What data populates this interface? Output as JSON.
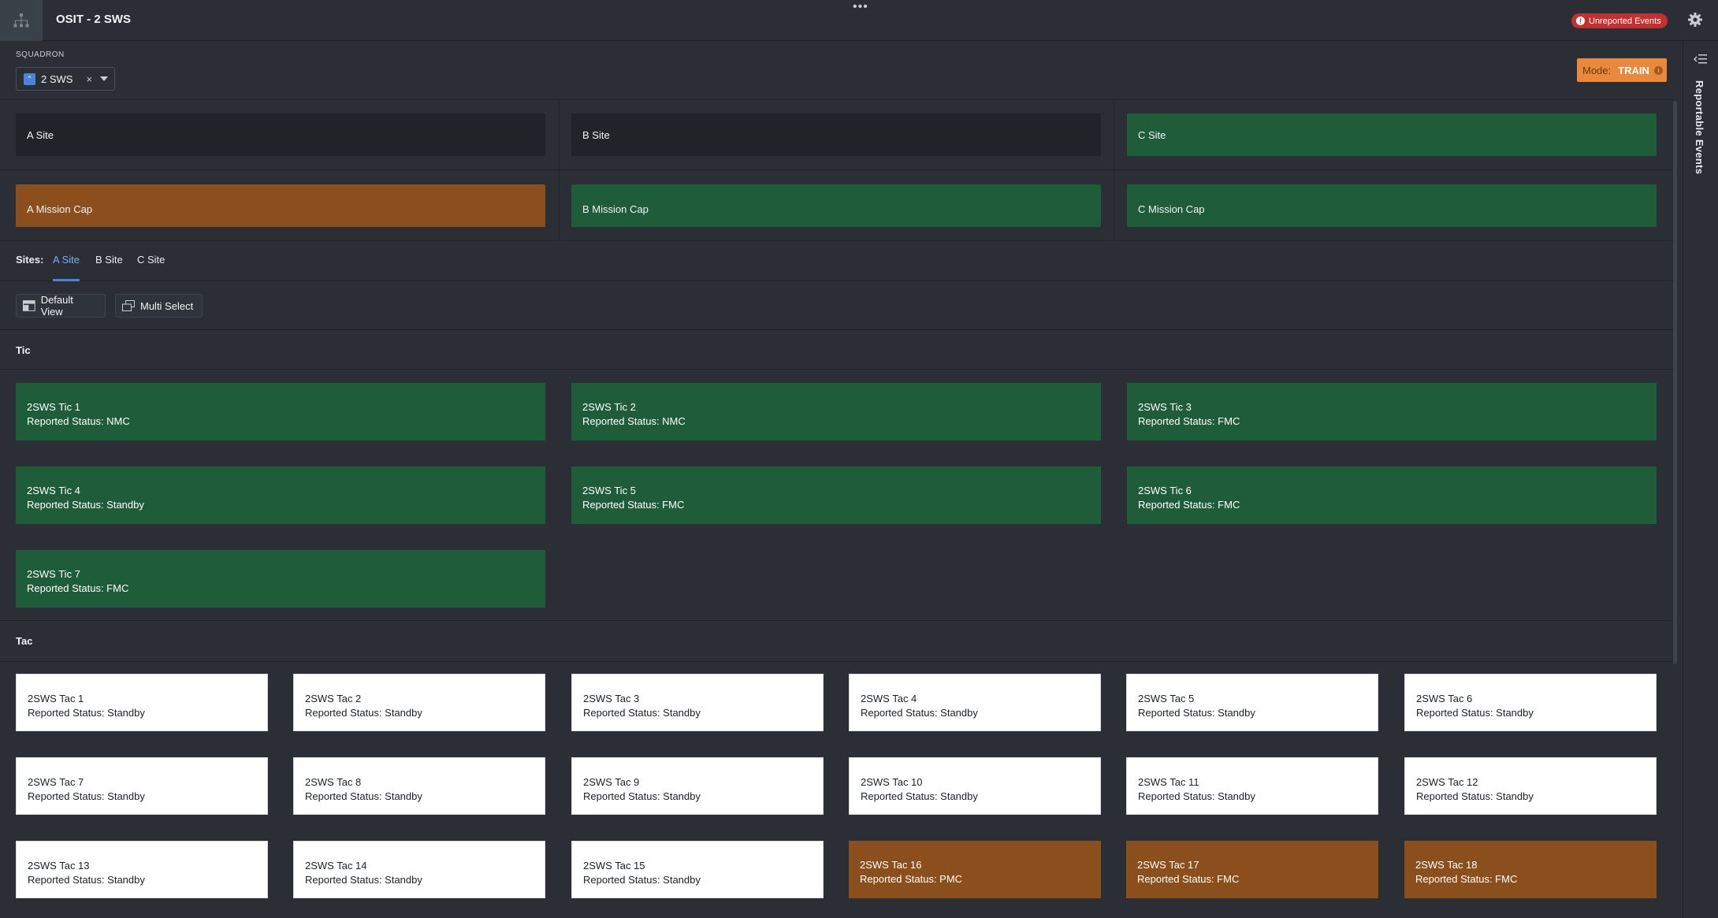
{
  "header": {
    "title": "OSIT - 2 SWS",
    "drag_handle": "•••",
    "unreported_events": "Unreported Events",
    "colors": {
      "alert": "#c23030",
      "accent": "#4c82d8"
    }
  },
  "squadron": {
    "label": "SQUADRON",
    "selected": "2 SWS",
    "clear_glyph": "×"
  },
  "mode": {
    "label": "Mode:",
    "value": "TRAIN",
    "color": "#e8893e"
  },
  "right_panel": {
    "label": "Reportable Events"
  },
  "site_status": [
    {
      "label": "A Site",
      "status": "dark"
    },
    {
      "label": "B Site",
      "status": "dark"
    },
    {
      "label": "C Site",
      "status": "green"
    }
  ],
  "mission_caps": [
    {
      "label": "A Mission Cap",
      "status": "orange"
    },
    {
      "label": "B Mission Cap",
      "status": "green"
    },
    {
      "label": "C Mission Cap",
      "status": "green"
    }
  ],
  "tabs": {
    "label": "Sites:",
    "items": [
      "A Site",
      "B Site",
      "C Site"
    ],
    "active": "A Site"
  },
  "toolbar": {
    "default_view": "Default View",
    "multi_select": "Multi Select"
  },
  "tic": {
    "title": "Tic",
    "items": [
      {
        "name": "2SWS Tic 1",
        "status": "Reported Status: NMC",
        "color": "green"
      },
      {
        "name": "2SWS Tic 2",
        "status": "Reported Status: NMC",
        "color": "green"
      },
      {
        "name": "2SWS Tic 3",
        "status": "Reported Status: FMC",
        "color": "green"
      },
      {
        "name": "2SWS Tic 4",
        "status": "Reported Status: Standby",
        "color": "green"
      },
      {
        "name": "2SWS Tic 5",
        "status": "Reported Status: FMC",
        "color": "green"
      },
      {
        "name": "2SWS Tic 6",
        "status": "Reported Status: FMC",
        "color": "green"
      },
      {
        "name": "2SWS Tic 7",
        "status": "Reported Status: FMC",
        "color": "green"
      }
    ]
  },
  "tac": {
    "title": "Tac",
    "items": [
      {
        "name": "2SWS Tac 1",
        "status": "Reported Status: Standby",
        "color": "white"
      },
      {
        "name": "2SWS Tac 2",
        "status": "Reported Status: Standby",
        "color": "white"
      },
      {
        "name": "2SWS Tac 3",
        "status": "Reported Status: Standby",
        "color": "white"
      },
      {
        "name": "2SWS Tac 4",
        "status": "Reported Status: Standby",
        "color": "white"
      },
      {
        "name": "2SWS Tac 5",
        "status": "Reported Status: Standby",
        "color": "white"
      },
      {
        "name": "2SWS Tac 6",
        "status": "Reported Status: Standby",
        "color": "white"
      },
      {
        "name": "2SWS Tac 7",
        "status": "Reported Status: Standby",
        "color": "white"
      },
      {
        "name": "2SWS Tac 8",
        "status": "Reported Status: Standby",
        "color": "white"
      },
      {
        "name": "2SWS Tac 9",
        "status": "Reported Status: Standby",
        "color": "white"
      },
      {
        "name": "2SWS Tac 10",
        "status": "Reported Status: Standby",
        "color": "white"
      },
      {
        "name": "2SWS Tac 11",
        "status": "Reported Status: Standby",
        "color": "white"
      },
      {
        "name": "2SWS Tac 12",
        "status": "Reported Status: Standby",
        "color": "white"
      },
      {
        "name": "2SWS Tac 13",
        "status": "Reported Status: Standby",
        "color": "white"
      },
      {
        "name": "2SWS Tac 14",
        "status": "Reported Status: Standby",
        "color": "white"
      },
      {
        "name": "2SWS Tac 15",
        "status": "Reported Status: Standby",
        "color": "white"
      },
      {
        "name": "2SWS Tac 16",
        "status": "Reported Status: PMC",
        "color": "orange"
      },
      {
        "name": "2SWS Tac 17",
        "status": "Reported Status: FMC",
        "color": "orange"
      },
      {
        "name": "2SWS Tac 18",
        "status": "Reported Status: FMC",
        "color": "orange"
      }
    ]
  },
  "icons": [
    "hierarchy-icon",
    "gear-icon",
    "alert-icon",
    "collapse-panel-icon",
    "squadron-tag-icon",
    "clear-icon",
    "chevron-down-icon",
    "info-icon",
    "layout-icon",
    "multi-select-icon"
  ]
}
